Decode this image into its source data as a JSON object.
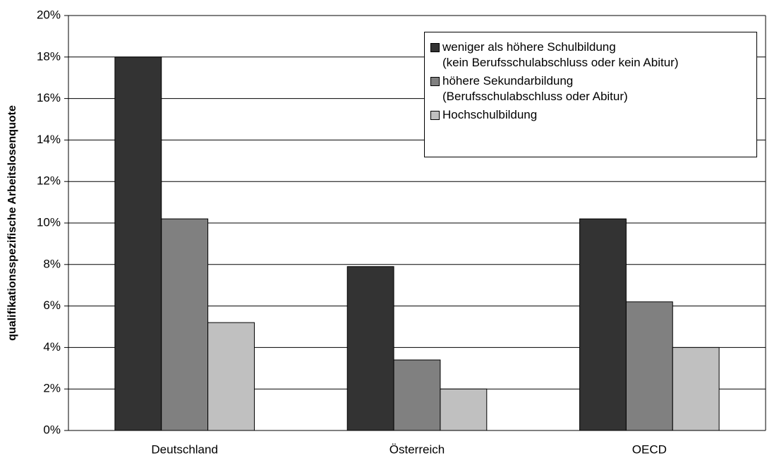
{
  "chart_data": {
    "type": "bar",
    "y_label": "qualifikationsspezifische Arbeitslosenquote",
    "categories": [
      "Deutschland",
      "Österreich",
      "OECD"
    ],
    "series": [
      {
        "name": "weniger als höhere Schulbildung\n(kein Berufsschulabschluss oder kein Abitur)",
        "color": "#333333",
        "values": [
          18,
          7.9,
          10.2
        ]
      },
      {
        "name": "höhere Sekundarbildung\n(Berufsschulabschluss oder Abitur)",
        "color": "#808080",
        "values": [
          10.2,
          3.4,
          6.2
        ]
      },
      {
        "name": "Hochschulbildung",
        "color": "#c0c0c0",
        "values": [
          5.2,
          2,
          4
        ]
      }
    ],
    "ylim": [
      0,
      20
    ],
    "yticks": [
      {
        "value": 0,
        "label": "0%"
      },
      {
        "value": 2,
        "label": "2%"
      },
      {
        "value": 4,
        "label": "4%"
      },
      {
        "value": 6,
        "label": "6%"
      },
      {
        "value": 8,
        "label": "8%"
      },
      {
        "value": 10,
        "label": "10%"
      },
      {
        "value": 12,
        "label": "12%"
      },
      {
        "value": 14,
        "label": "14%"
      },
      {
        "value": 16,
        "label": "16%"
      },
      {
        "value": 18,
        "label": "18%"
      },
      {
        "value": 20,
        "label": "20%"
      }
    ],
    "grid": true,
    "legend": "upper right"
  }
}
